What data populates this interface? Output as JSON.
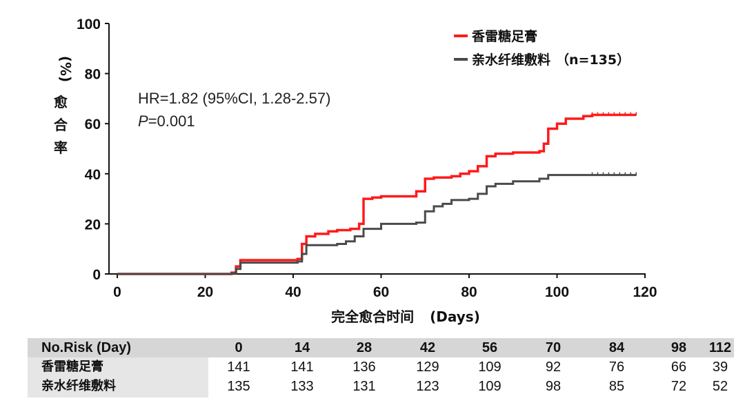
{
  "chart_data": {
    "type": "line",
    "step": true,
    "xlabel_cn": "完全愈合时间",
    "xlabel_en": "(Days)",
    "ylabel_unit": "(%)",
    "ylabel_cn": "愈合率",
    "xlim": [
      0,
      120
    ],
    "ylim": [
      0,
      100
    ],
    "xticks": [
      0,
      20,
      40,
      60,
      80,
      100,
      120
    ],
    "yticks": [
      0,
      20,
      40,
      60,
      80,
      100
    ],
    "grid": false,
    "legend_position": "top-right",
    "annotation": {
      "hr": "HR=1.82 (95%CI, 1.28-2.57)",
      "p_italic": "P",
      "p_rest": "=0.001"
    },
    "series": [
      {
        "name": "香雷糖足膏",
        "color": "#ff1a1a",
        "x": [
          0,
          26,
          27,
          28,
          41,
          42,
          43,
          45,
          48,
          50,
          53,
          55,
          56,
          58,
          60,
          68,
          70,
          72,
          76,
          78,
          80,
          82,
          84,
          86,
          90,
          96,
          97,
          98,
          100,
          102,
          106,
          108,
          118
        ],
        "y": [
          0,
          0.5,
          3,
          5.5,
          6,
          12,
          15,
          16,
          17,
          17.5,
          18,
          20,
          30,
          30.5,
          31,
          33,
          38,
          38.5,
          39,
          40,
          41,
          43,
          47,
          48,
          48.5,
          49,
          52,
          58,
          60,
          62,
          63,
          63.5,
          63.5
        ]
      },
      {
        "name": "亲水纤维敷料",
        "color": "#4a4a4a",
        "x": [
          0,
          26,
          27,
          28,
          41,
          42,
          43,
          50,
          52,
          54,
          56,
          60,
          68,
          70,
          72,
          74,
          76,
          80,
          82,
          84,
          86,
          90,
          96,
          98,
          100,
          108,
          118
        ],
        "y": [
          0,
          0.3,
          2,
          4.5,
          5,
          8,
          11.5,
          12,
          13,
          15,
          18,
          20,
          20.5,
          25,
          27,
          28,
          29.5,
          30,
          32,
          35,
          36,
          37,
          38,
          39.5,
          39.5,
          39.5,
          39.5
        ]
      }
    ],
    "legend": [
      {
        "label": "香雷糖足膏",
        "suffix": ""
      },
      {
        "label": "亲水纤维敷料",
        "suffix": "（n=135）"
      }
    ]
  },
  "risk_table": {
    "header_label": "No.Risk (Day)",
    "days": [
      "0",
      "14",
      "28",
      "42",
      "56",
      "70",
      "84",
      "98",
      "112"
    ],
    "rows": [
      {
        "label": "香雷糖足膏",
        "values": [
          "141",
          "141",
          "136",
          "129",
          "109",
          "92",
          "76",
          "66",
          "39"
        ]
      },
      {
        "label": "亲水纤维敷料",
        "values": [
          "135",
          "133",
          "131",
          "123",
          "109",
          "98",
          "85",
          "72",
          "52"
        ]
      }
    ]
  }
}
